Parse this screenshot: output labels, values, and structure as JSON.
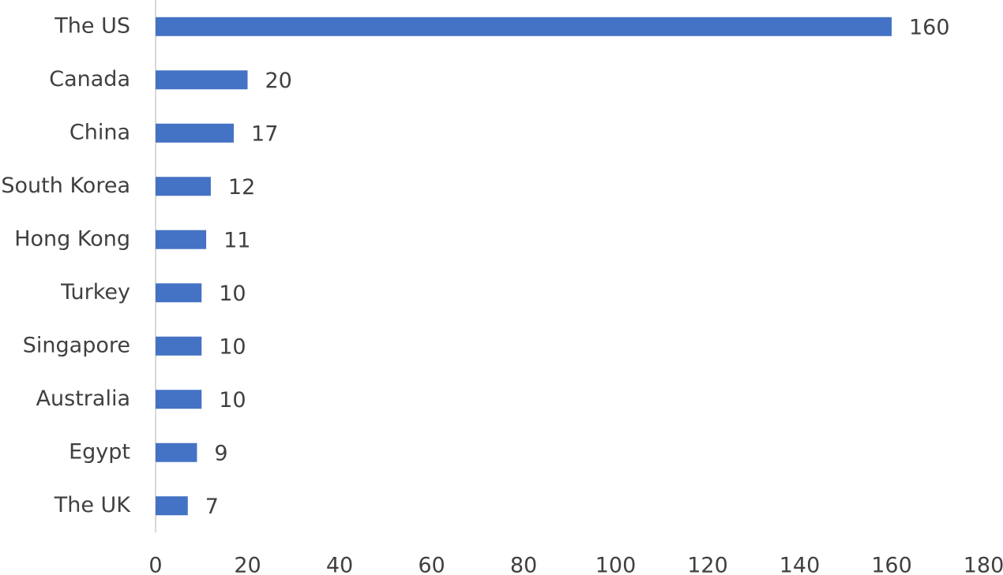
{
  "chart_data": {
    "type": "bar",
    "orientation": "horizontal",
    "categories": [
      "The US",
      "Canada",
      "China",
      "South Korea",
      "Hong Kong",
      "Turkey",
      "Singapore",
      "Australia",
      "Egypt",
      "The UK"
    ],
    "values": [
      160,
      20,
      17,
      12,
      11,
      10,
      10,
      10,
      9,
      7
    ],
    "color": "#4472c4",
    "xlim": [
      0,
      180
    ],
    "xticks": [
      0,
      20,
      40,
      60,
      80,
      100,
      120,
      140,
      160,
      180
    ],
    "grid": false
  }
}
